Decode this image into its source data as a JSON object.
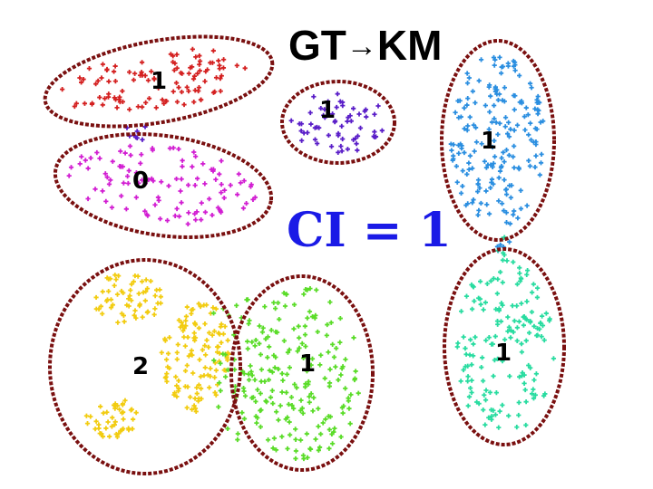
{
  "title": {
    "gt": "GT",
    "arrow": "→",
    "km": "KM"
  },
  "ci_label": "CI = 1",
  "colors": {
    "ellipse_border": "#7a1010",
    "ci_text": "#1a1ae6",
    "red": "#d42020",
    "magenta": "#d21ed2",
    "purple": "#5a1ec8",
    "blue": "#2a8ee0",
    "yellow": "#f2cc10",
    "green": "#5adc28",
    "teal": "#28dca0"
  },
  "clusters": [
    {
      "id": "red-top-left",
      "label": "1",
      "color": "red"
    },
    {
      "id": "magenta-mid-left",
      "label": "0",
      "color": "magenta"
    },
    {
      "id": "purple-center",
      "label": "1",
      "color": "purple"
    },
    {
      "id": "blue-right",
      "label": "1",
      "color": "blue"
    },
    {
      "id": "bottom-left",
      "label": "2",
      "color": "yellow"
    },
    {
      "id": "green-bottom-center",
      "label": "1",
      "color": "green"
    },
    {
      "id": "teal-bottom-right",
      "label": "1",
      "color": "teal"
    }
  ]
}
